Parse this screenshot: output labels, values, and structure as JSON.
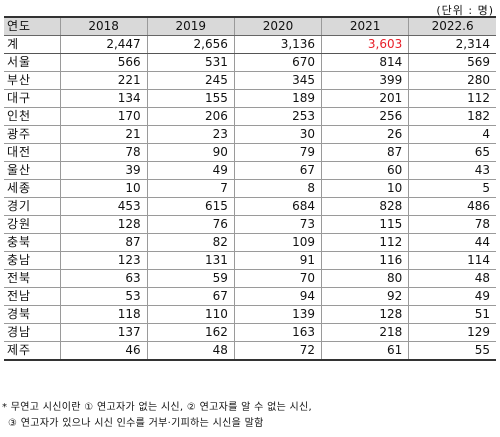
{
  "unit_label": "(단위 : 명)",
  "headers": [
    "연도",
    "2018",
    "2019",
    "2020",
    "2021",
    "2022.6"
  ],
  "rows": [
    {
      "region": "계",
      "values": [
        "2,447",
        "2,656",
        "3,136",
        "3,603",
        "2,314"
      ],
      "highlight": [
        3
      ]
    },
    {
      "region": "서울",
      "values": [
        "566",
        "531",
        "670",
        "814",
        "569"
      ]
    },
    {
      "region": "부산",
      "values": [
        "221",
        "245",
        "345",
        "399",
        "280"
      ]
    },
    {
      "region": "대구",
      "values": [
        "134",
        "155",
        "189",
        "201",
        "112"
      ]
    },
    {
      "region": "인천",
      "values": [
        "170",
        "206",
        "253",
        "256",
        "182"
      ]
    },
    {
      "region": "광주",
      "values": [
        "21",
        "23",
        "30",
        "26",
        "4"
      ]
    },
    {
      "region": "대전",
      "values": [
        "78",
        "90",
        "79",
        "87",
        "65"
      ]
    },
    {
      "region": "울산",
      "values": [
        "39",
        "49",
        "67",
        "60",
        "43"
      ]
    },
    {
      "region": "세종",
      "values": [
        "10",
        "7",
        "8",
        "10",
        "5"
      ]
    },
    {
      "region": "경기",
      "values": [
        "453",
        "615",
        "684",
        "828",
        "486"
      ]
    },
    {
      "region": "강원",
      "values": [
        "128",
        "76",
        "73",
        "115",
        "78"
      ]
    },
    {
      "region": "충북",
      "values": [
        "87",
        "82",
        "109",
        "112",
        "44"
      ]
    },
    {
      "region": "충남",
      "values": [
        "123",
        "131",
        "91",
        "116",
        "114"
      ]
    },
    {
      "region": "전북",
      "values": [
        "63",
        "59",
        "70",
        "80",
        "48"
      ]
    },
    {
      "region": "전남",
      "values": [
        "53",
        "67",
        "94",
        "92",
        "49"
      ]
    },
    {
      "region": "경북",
      "values": [
        "118",
        "110",
        "139",
        "128",
        "51"
      ]
    },
    {
      "region": "경남",
      "values": [
        "137",
        "162",
        "163",
        "218",
        "129"
      ]
    },
    {
      "region": "제주",
      "values": [
        "46",
        "48",
        "72",
        "61",
        "55"
      ]
    }
  ],
  "notes": [
    "* 무연고 시신이란 ① 연고자가 없는 시신, ② 연고자를 알 수 없는 시신,",
    "③ 연고자가 있으나 시신 인수를 거부·기피하는 시신을 말함"
  ],
  "highlight_color": "#e8202a"
}
